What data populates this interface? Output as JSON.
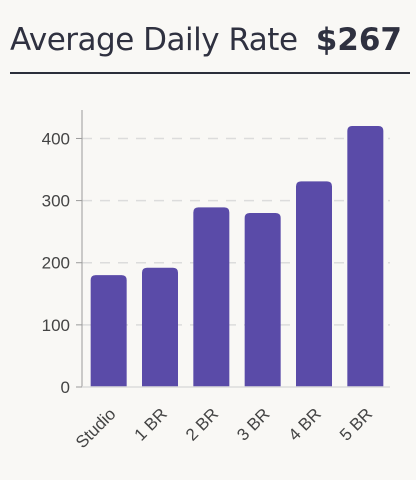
{
  "header": {
    "title": "Average Daily Rate",
    "value": "$267"
  },
  "colors": {
    "bar": "#5a4ba8",
    "grid": "#dcdcdc",
    "axis": "#9a9a9a",
    "tick_text": "#444444",
    "header_text": "#2f3140"
  },
  "chart_data": {
    "type": "bar",
    "title": "",
    "xlabel": "",
    "ylabel": "",
    "categories": [
      "Studio",
      "1 BR",
      "2 BR",
      "3 BR",
      "4 BR",
      "5 BR"
    ],
    "values": [
      180,
      192,
      289,
      280,
      331,
      420
    ],
    "ylim": [
      0,
      420
    ],
    "yticks": [
      0,
      100,
      200,
      300,
      400
    ],
    "grid": "y-dashed"
  }
}
